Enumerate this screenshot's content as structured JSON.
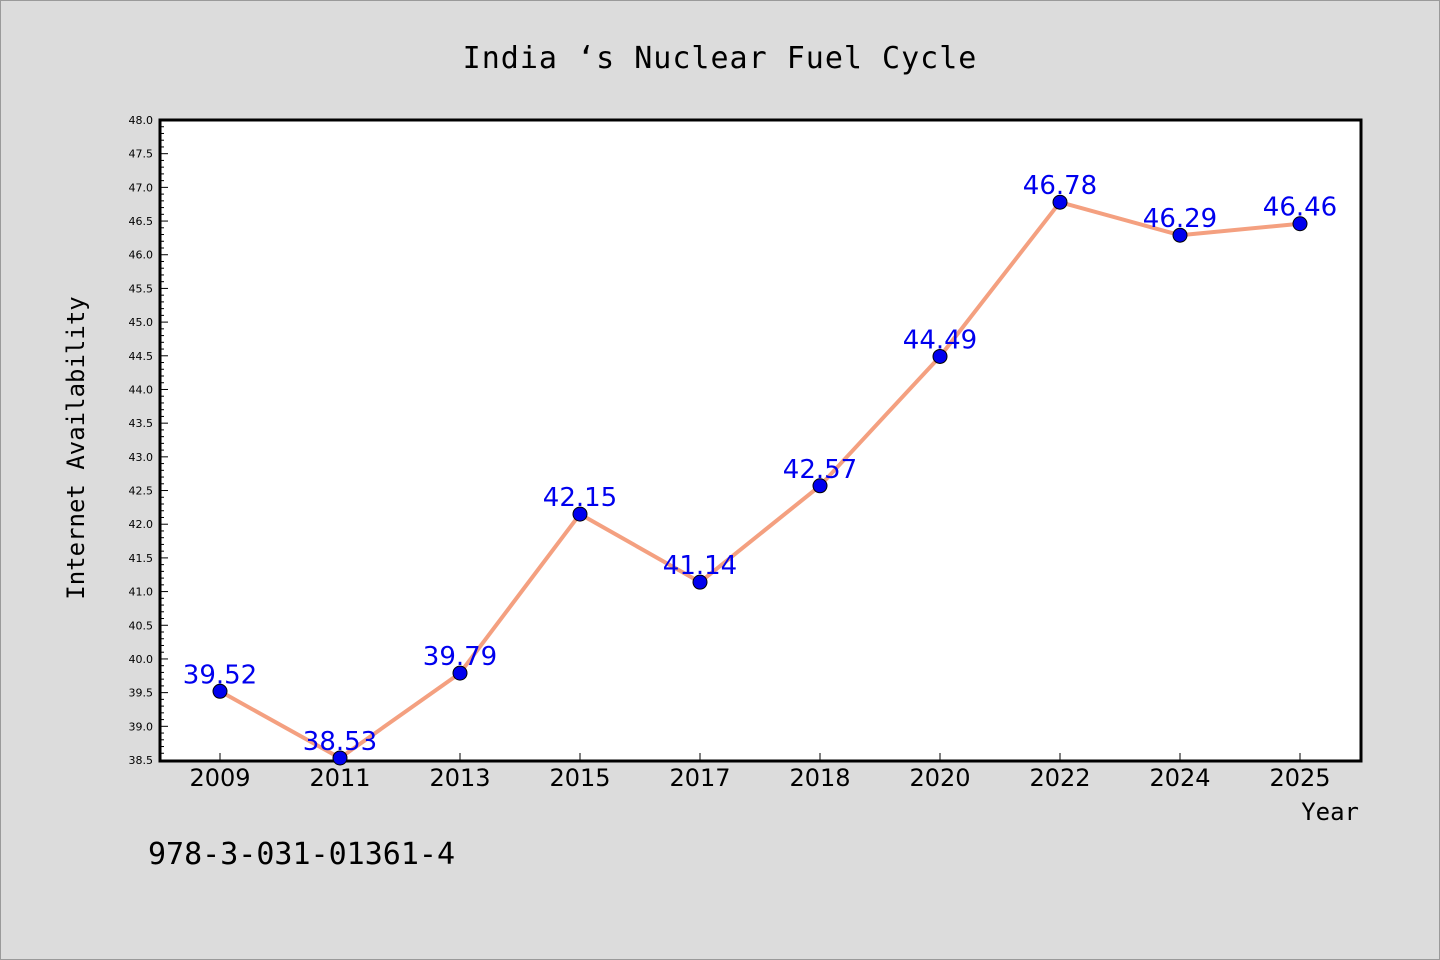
{
  "chart_data": {
    "type": "line",
    "title": "India ‘s Nuclear Fuel Cycle",
    "xlabel": "Year",
    "ylabel": "Internet Availability",
    "categories": [
      "2009",
      "2011",
      "2013",
      "2015",
      "2017",
      "2018",
      "2020",
      "2022",
      "2024",
      "2025"
    ],
    "series": [
      {
        "values": [
          39.52,
          38.53,
          39.79,
          42.15,
          41.14,
          42.57,
          44.49,
          46.78,
          46.29,
          46.46
        ]
      }
    ],
    "data_labels": [
      "39.52",
      "38.53",
      "39.79",
      "42.15",
      "41.14",
      "42.57",
      "44.49",
      "46.78",
      "46.29",
      "46.46"
    ],
    "ylim": [
      38.5,
      48.0
    ],
    "ytick_step": 0.5,
    "grid": false,
    "line_color": "#f4a080",
    "marker_color": "#0000ee",
    "label_color": "#0000ee"
  },
  "footer_text": "978-3-031-01361-4"
}
